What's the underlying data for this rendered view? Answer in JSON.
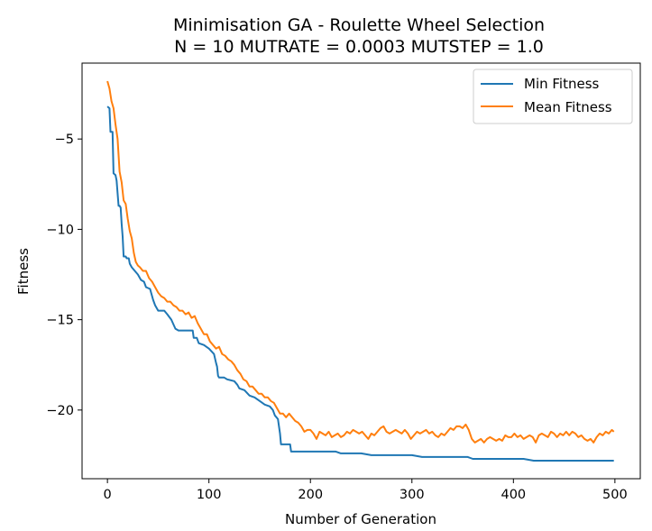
{
  "chart_data": {
    "type": "line",
    "title_line1": "Minimisation GA - Roulette Wheel Selection",
    "title_line2": "N = 10 MUTRATE = 0.0003 MUTSTEP = 1.0",
    "xlabel": "Number of Generation",
    "ylabel": "Fitness",
    "xlim": [
      -25,
      525
    ],
    "ylim": [
      -23.8,
      -0.8
    ],
    "xticks": [
      0,
      100,
      200,
      300,
      400,
      500
    ],
    "yticks": [
      -5,
      -10,
      -15,
      -20
    ],
    "legend_position": "top-right",
    "series": [
      {
        "name": "Min Fitness",
        "color": "#1f77b4",
        "points": [
          [
            0,
            -3.2
          ],
          [
            2,
            -3.3
          ],
          [
            3,
            -4.6
          ],
          [
            5,
            -4.6
          ],
          [
            6,
            -6.9
          ],
          [
            8,
            -7.0
          ],
          [
            9,
            -7.3
          ],
          [
            11,
            -8.7
          ],
          [
            12,
            -8.7
          ],
          [
            13,
            -8.8
          ],
          [
            14,
            -9.7
          ],
          [
            15,
            -10.4
          ],
          [
            16,
            -11.5
          ],
          [
            18,
            -11.5
          ],
          [
            19,
            -11.6
          ],
          [
            21,
            -11.6
          ],
          [
            22,
            -11.9
          ],
          [
            24,
            -12.1
          ],
          [
            27,
            -12.3
          ],
          [
            30,
            -12.5
          ],
          [
            33,
            -12.8
          ],
          [
            36,
            -12.9
          ],
          [
            38,
            -13.2
          ],
          [
            42,
            -13.3
          ],
          [
            45,
            -13.9
          ],
          [
            47,
            -14.2
          ],
          [
            50,
            -14.5
          ],
          [
            56,
            -14.5
          ],
          [
            59,
            -14.7
          ],
          [
            63,
            -15.0
          ],
          [
            67,
            -15.5
          ],
          [
            70,
            -15.6
          ],
          [
            75,
            -15.6
          ],
          [
            84,
            -15.6
          ],
          [
            85,
            -16.0
          ],
          [
            88,
            -16.0
          ],
          [
            90,
            -16.3
          ],
          [
            95,
            -16.4
          ],
          [
            100,
            -16.6
          ],
          [
            105,
            -16.9
          ],
          [
            107,
            -17.4
          ],
          [
            108,
            -17.6
          ],
          [
            109,
            -18.1
          ],
          [
            110,
            -18.2
          ],
          [
            115,
            -18.2
          ],
          [
            118,
            -18.3
          ],
          [
            125,
            -18.4
          ],
          [
            128,
            -18.6
          ],
          [
            130,
            -18.8
          ],
          [
            135,
            -18.9
          ],
          [
            140,
            -19.2
          ],
          [
            145,
            -19.3
          ],
          [
            150,
            -19.5
          ],
          [
            155,
            -19.7
          ],
          [
            160,
            -19.8
          ],
          [
            163,
            -20.0
          ],
          [
            165,
            -20.3
          ],
          [
            168,
            -20.5
          ],
          [
            170,
            -21.3
          ],
          [
            171,
            -21.9
          ],
          [
            175,
            -21.9
          ],
          [
            180,
            -21.9
          ],
          [
            181,
            -22.3
          ],
          [
            190,
            -22.3
          ],
          [
            200,
            -22.3
          ],
          [
            225,
            -22.3
          ],
          [
            230,
            -22.4
          ],
          [
            250,
            -22.4
          ],
          [
            260,
            -22.5
          ],
          [
            300,
            -22.5
          ],
          [
            310,
            -22.6
          ],
          [
            350,
            -22.6
          ],
          [
            355,
            -22.6
          ],
          [
            360,
            -22.7
          ],
          [
            400,
            -22.7
          ],
          [
            410,
            -22.7
          ],
          [
            420,
            -22.8
          ],
          [
            450,
            -22.8
          ],
          [
            499,
            -22.8
          ]
        ]
      },
      {
        "name": "Mean Fitness",
        "color": "#ff7f0e",
        "points": [
          [
            0,
            -1.8
          ],
          [
            2,
            -2.2
          ],
          [
            4,
            -2.9
          ],
          [
            6,
            -3.3
          ],
          [
            8,
            -4.2
          ],
          [
            10,
            -5.0
          ],
          [
            12,
            -6.8
          ],
          [
            14,
            -7.4
          ],
          [
            16,
            -8.4
          ],
          [
            18,
            -8.6
          ],
          [
            20,
            -9.4
          ],
          [
            22,
            -10.1
          ],
          [
            24,
            -10.5
          ],
          [
            26,
            -11.3
          ],
          [
            28,
            -11.8
          ],
          [
            30,
            -12.0
          ],
          [
            32,
            -12.1
          ],
          [
            35,
            -12.3
          ],
          [
            38,
            -12.3
          ],
          [
            41,
            -12.7
          ],
          [
            44,
            -12.9
          ],
          [
            47,
            -13.2
          ],
          [
            50,
            -13.5
          ],
          [
            53,
            -13.7
          ],
          [
            56,
            -13.8
          ],
          [
            59,
            -14.0
          ],
          [
            62,
            -14.0
          ],
          [
            65,
            -14.2
          ],
          [
            68,
            -14.3
          ],
          [
            71,
            -14.5
          ],
          [
            74,
            -14.5
          ],
          [
            77,
            -14.7
          ],
          [
            80,
            -14.6
          ],
          [
            83,
            -14.9
          ],
          [
            86,
            -14.8
          ],
          [
            89,
            -15.2
          ],
          [
            92,
            -15.5
          ],
          [
            95,
            -15.8
          ],
          [
            98,
            -15.8
          ],
          [
            101,
            -16.2
          ],
          [
            104,
            -16.4
          ],
          [
            107,
            -16.6
          ],
          [
            110,
            -16.5
          ],
          [
            113,
            -16.9
          ],
          [
            116,
            -17.0
          ],
          [
            119,
            -17.2
          ],
          [
            122,
            -17.3
          ],
          [
            125,
            -17.5
          ],
          [
            128,
            -17.8
          ],
          [
            131,
            -18.0
          ],
          [
            134,
            -18.3
          ],
          [
            137,
            -18.4
          ],
          [
            140,
            -18.7
          ],
          [
            143,
            -18.7
          ],
          [
            146,
            -18.9
          ],
          [
            149,
            -19.1
          ],
          [
            152,
            -19.1
          ],
          [
            155,
            -19.3
          ],
          [
            158,
            -19.3
          ],
          [
            161,
            -19.5
          ],
          [
            164,
            -19.6
          ],
          [
            167,
            -19.9
          ],
          [
            170,
            -20.2
          ],
          [
            173,
            -20.2
          ],
          [
            176,
            -20.4
          ],
          [
            179,
            -20.2
          ],
          [
            182,
            -20.4
          ],
          [
            185,
            -20.6
          ],
          [
            188,
            -20.7
          ],
          [
            191,
            -20.9
          ],
          [
            194,
            -21.2
          ],
          [
            197,
            -21.1
          ],
          [
            200,
            -21.1
          ],
          [
            203,
            -21.3
          ],
          [
            206,
            -21.6
          ],
          [
            209,
            -21.2
          ],
          [
            212,
            -21.3
          ],
          [
            215,
            -21.4
          ],
          [
            218,
            -21.2
          ],
          [
            221,
            -21.5
          ],
          [
            224,
            -21.4
          ],
          [
            227,
            -21.3
          ],
          [
            230,
            -21.5
          ],
          [
            233,
            -21.4
          ],
          [
            236,
            -21.2
          ],
          [
            239,
            -21.3
          ],
          [
            242,
            -21.1
          ],
          [
            245,
            -21.2
          ],
          [
            248,
            -21.3
          ],
          [
            251,
            -21.2
          ],
          [
            254,
            -21.4
          ],
          [
            257,
            -21.6
          ],
          [
            260,
            -21.3
          ],
          [
            263,
            -21.4
          ],
          [
            266,
            -21.2
          ],
          [
            269,
            -21.0
          ],
          [
            272,
            -20.9
          ],
          [
            275,
            -21.2
          ],
          [
            278,
            -21.3
          ],
          [
            281,
            -21.2
          ],
          [
            284,
            -21.1
          ],
          [
            287,
            -21.2
          ],
          [
            290,
            -21.3
          ],
          [
            293,
            -21.1
          ],
          [
            296,
            -21.3
          ],
          [
            299,
            -21.6
          ],
          [
            302,
            -21.4
          ],
          [
            305,
            -21.2
          ],
          [
            308,
            -21.3
          ],
          [
            311,
            -21.2
          ],
          [
            314,
            -21.1
          ],
          [
            317,
            -21.3
          ],
          [
            320,
            -21.2
          ],
          [
            323,
            -21.4
          ],
          [
            326,
            -21.5
          ],
          [
            329,
            -21.3
          ],
          [
            332,
            -21.4
          ],
          [
            335,
            -21.2
          ],
          [
            338,
            -21.0
          ],
          [
            341,
            -21.1
          ],
          [
            344,
            -20.9
          ],
          [
            347,
            -20.9
          ],
          [
            350,
            -21.0
          ],
          [
            353,
            -20.8
          ],
          [
            356,
            -21.1
          ],
          [
            359,
            -21.6
          ],
          [
            362,
            -21.8
          ],
          [
            365,
            -21.7
          ],
          [
            368,
            -21.6
          ],
          [
            371,
            -21.8
          ],
          [
            374,
            -21.6
          ],
          [
            377,
            -21.5
          ],
          [
            380,
            -21.6
          ],
          [
            383,
            -21.7
          ],
          [
            386,
            -21.6
          ],
          [
            389,
            -21.7
          ],
          [
            392,
            -21.4
          ],
          [
            395,
            -21.5
          ],
          [
            398,
            -21.5
          ],
          [
            401,
            -21.3
          ],
          [
            404,
            -21.5
          ],
          [
            407,
            -21.4
          ],
          [
            410,
            -21.6
          ],
          [
            413,
            -21.5
          ],
          [
            416,
            -21.4
          ],
          [
            419,
            -21.5
          ],
          [
            422,
            -21.8
          ],
          [
            425,
            -21.4
          ],
          [
            428,
            -21.3
          ],
          [
            431,
            -21.4
          ],
          [
            434,
            -21.5
          ],
          [
            437,
            -21.2
          ],
          [
            440,
            -21.3
          ],
          [
            443,
            -21.5
          ],
          [
            446,
            -21.3
          ],
          [
            449,
            -21.4
          ],
          [
            452,
            -21.2
          ],
          [
            455,
            -21.4
          ],
          [
            458,
            -21.2
          ],
          [
            461,
            -21.3
          ],
          [
            464,
            -21.5
          ],
          [
            467,
            -21.4
          ],
          [
            470,
            -21.6
          ],
          [
            473,
            -21.7
          ],
          [
            476,
            -21.6
          ],
          [
            479,
            -21.8
          ],
          [
            482,
            -21.5
          ],
          [
            485,
            -21.3
          ],
          [
            488,
            -21.4
          ],
          [
            491,
            -21.2
          ],
          [
            494,
            -21.3
          ],
          [
            497,
            -21.1
          ],
          [
            499,
            -21.2
          ]
        ]
      }
    ]
  }
}
